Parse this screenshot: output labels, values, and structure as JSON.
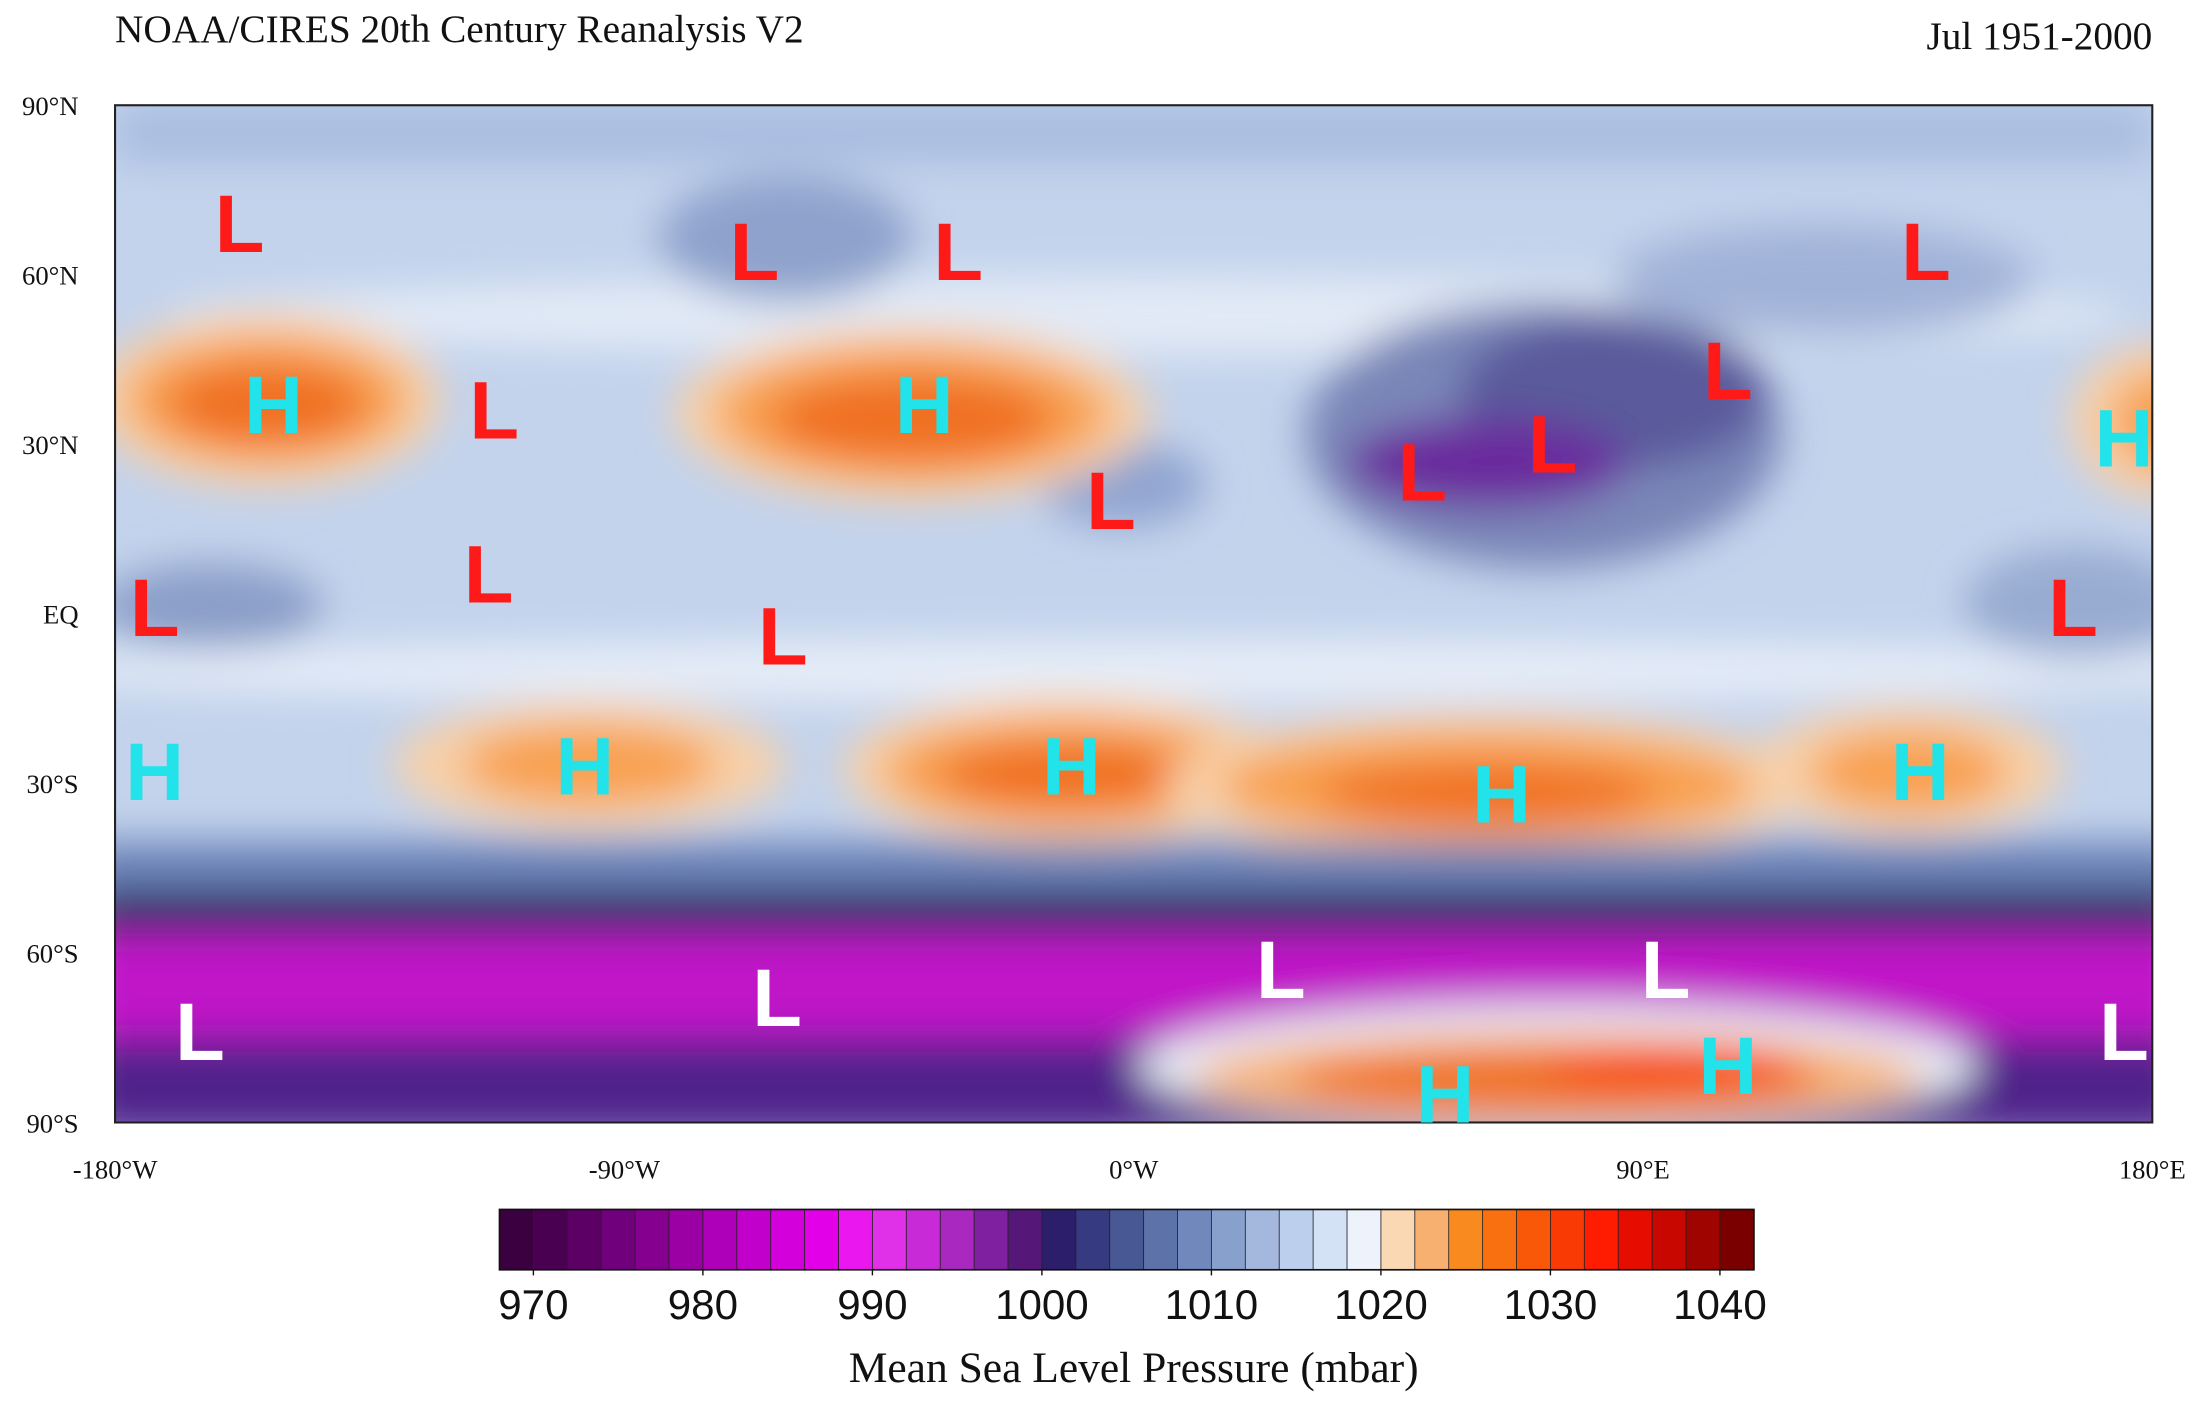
{
  "header": {
    "title": "NOAA/CIRES 20th Century Reanalysis V2",
    "period": "Jul 1951-2000"
  },
  "map": {
    "lat_labels": [
      "90°N",
      "60°N",
      "30°N",
      "EQ",
      "30°S",
      "60°S",
      "90°S"
    ],
    "lon_labels": [
      "-180°W",
      "-90°W",
      "0°W",
      "90°E",
      "180°E"
    ],
    "markers": [
      {
        "label": "L",
        "color": "#ff1a1a",
        "lon": -158,
        "lat": 69
      },
      {
        "label": "L",
        "color": "#ff1a1a",
        "lon": -67,
        "lat": 64
      },
      {
        "label": "L",
        "color": "#ff1a1a",
        "lon": -31,
        "lat": 64
      },
      {
        "label": "L",
        "color": "#ff1a1a",
        "lon": 140,
        "lat": 64
      },
      {
        "label": "L",
        "color": "#ff1a1a",
        "lon": -113,
        "lat": 36
      },
      {
        "label": "L",
        "color": "#ff1a1a",
        "lon": 105,
        "lat": 43
      },
      {
        "label": "L",
        "color": "#ff1a1a",
        "lon": 74,
        "lat": 30
      },
      {
        "label": "L",
        "color": "#ff1a1a",
        "lon": 51,
        "lat": 25
      },
      {
        "label": "L",
        "color": "#ff1a1a",
        "lon": -4,
        "lat": 20
      },
      {
        "label": "L",
        "color": "#ff1a1a",
        "lon": -114,
        "lat": 7
      },
      {
        "label": "L",
        "color": "#ff1a1a",
        "lon": -173,
        "lat": 1
      },
      {
        "label": "L",
        "color": "#ff1a1a",
        "lon": -62,
        "lat": -4
      },
      {
        "label": "L",
        "color": "#ff1a1a",
        "lon": 166,
        "lat": 1
      },
      {
        "label": "L",
        "color": "#ffffff",
        "lon": -165,
        "lat": -74
      },
      {
        "label": "L",
        "color": "#ffffff",
        "lon": -63,
        "lat": -68
      },
      {
        "label": "L",
        "color": "#ffffff",
        "lon": 26,
        "lat": -63
      },
      {
        "label": "L",
        "color": "#ffffff",
        "lon": 94,
        "lat": -63
      },
      {
        "label": "L",
        "color": "#ffffff",
        "lon": 175,
        "lat": -74
      },
      {
        "label": "H",
        "color": "#22e2ea",
        "lon": -152,
        "lat": 37
      },
      {
        "label": "H",
        "color": "#22e2ea",
        "lon": -37,
        "lat": 37
      },
      {
        "label": "H",
        "color": "#22e2ea",
        "lon": 175,
        "lat": 31
      },
      {
        "label": "H",
        "color": "#22e2ea",
        "lon": -173,
        "lat": -28
      },
      {
        "label": "H",
        "color": "#22e2ea",
        "lon": -97,
        "lat": -27
      },
      {
        "label": "H",
        "color": "#22e2ea",
        "lon": -11,
        "lat": -27
      },
      {
        "label": "H",
        "color": "#22e2ea",
        "lon": 65,
        "lat": -32
      },
      {
        "label": "H",
        "color": "#22e2ea",
        "lon": 139,
        "lat": -28
      },
      {
        "label": "H",
        "color": "#22e2ea",
        "lon": 55,
        "lat": -85
      },
      {
        "label": "H",
        "color": "#22e2ea",
        "lon": 105,
        "lat": -80
      }
    ]
  },
  "colorbar": {
    "range": [
      968,
      1042
    ],
    "colors": [
      "#3a0040",
      "#4a0050",
      "#5c0066",
      "#70007c",
      "#860090",
      "#9a00a4",
      "#ae00b8",
      "#c200cc",
      "#d400dc",
      "#e200e8",
      "#ea18ee",
      "#e030e8",
      "#c82ad8",
      "#a828c0",
      "#7e20a0",
      "#561878",
      "#2c1e6a",
      "#363a80",
      "#485894",
      "#5c72a8",
      "#7088bc",
      "#88a0cc",
      "#a4b8de",
      "#bcd0ee",
      "#d4e2f6",
      "#eef2fa",
      "#fad8b4",
      "#f8b070",
      "#f88a20",
      "#f87010",
      "#f85808",
      "#fa3a04",
      "#ff1c00",
      "#e60c00",
      "#c80800",
      "#a00400",
      "#7a0000"
    ],
    "ticks": [
      970,
      980,
      990,
      1000,
      1010,
      1020,
      1030,
      1040
    ],
    "label": "Mean Sea Level Pressure (mbar)"
  }
}
